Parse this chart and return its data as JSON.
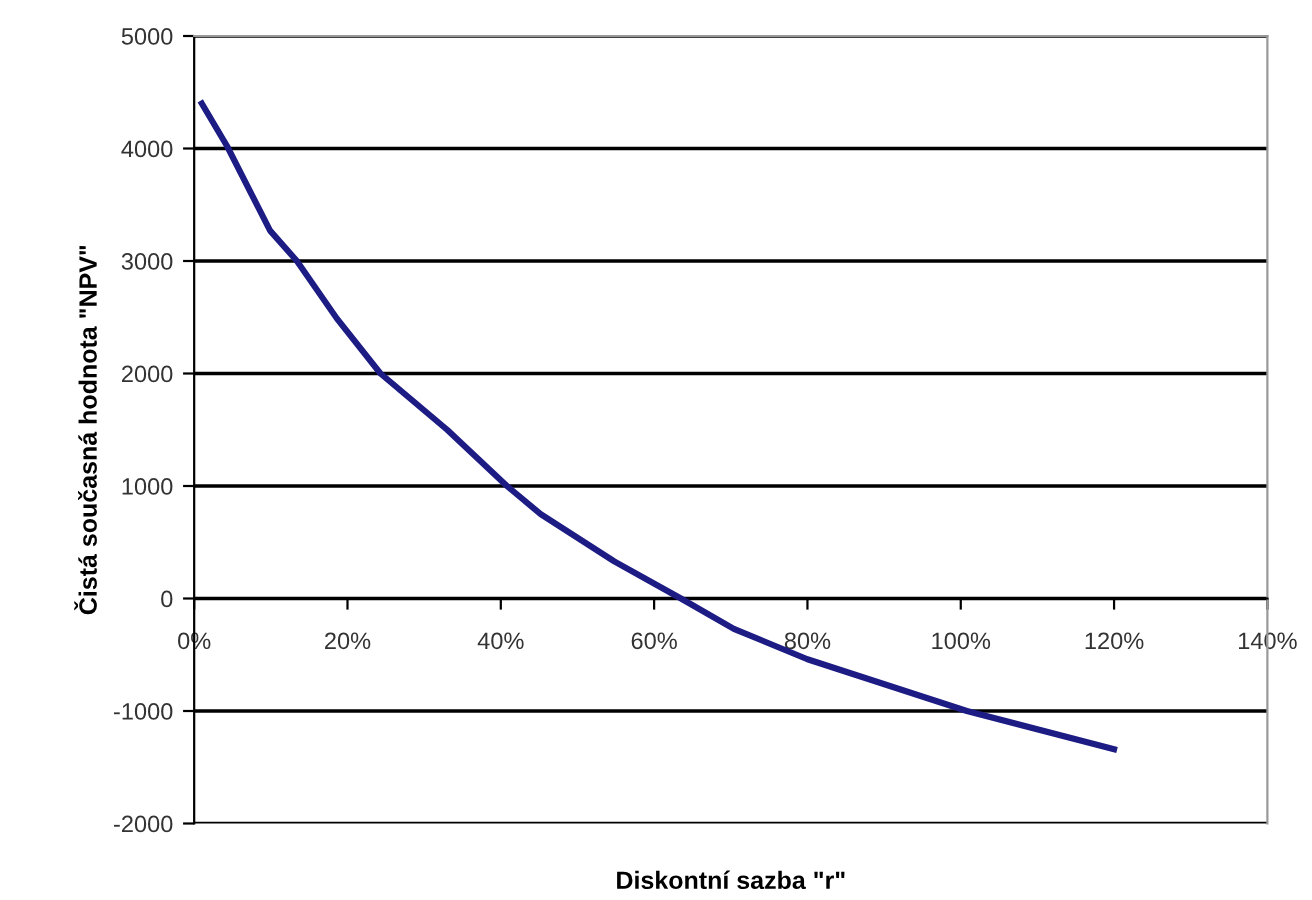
{
  "chart_data": {
    "type": "line",
    "xlabel": "Diskontní sazba \"r\"",
    "ylabel": "Čistá současná hodnota \"NPV\"",
    "x": [
      1,
      4.3,
      9.9,
      13.4,
      18.6,
      24.3,
      33,
      40.8,
      45.2,
      54.8,
      63.5,
      70.4,
      80,
      100.8,
      120
    ],
    "series": [
      {
        "color": "#1c1c84",
        "values": [
          4400,
          4020,
          3270,
          3000,
          2490,
          2000,
          1500,
          1000,
          750,
          330,
          0,
          -270,
          -540,
          -1000,
          -1340
        ]
      }
    ],
    "xlim": [
      0,
      140
    ],
    "xticks": [
      {
        "value": 0,
        "label": "0%"
      },
      {
        "value": 20,
        "label": "20%"
      },
      {
        "value": 40,
        "label": "40%"
      },
      {
        "value": 60,
        "label": "60%"
      },
      {
        "value": 80,
        "label": "80%"
      },
      {
        "value": 100,
        "label": "100%"
      },
      {
        "value": 120,
        "label": "120%"
      },
      {
        "value": 140,
        "label": "140%"
      }
    ],
    "ylim": [
      -2000,
      5000
    ],
    "yticks": [
      -2000,
      -1000,
      0,
      1000,
      2000,
      3000,
      4000,
      5000
    ],
    "grid": "y",
    "legend": false,
    "marker": "none",
    "line_style": "solid"
  }
}
